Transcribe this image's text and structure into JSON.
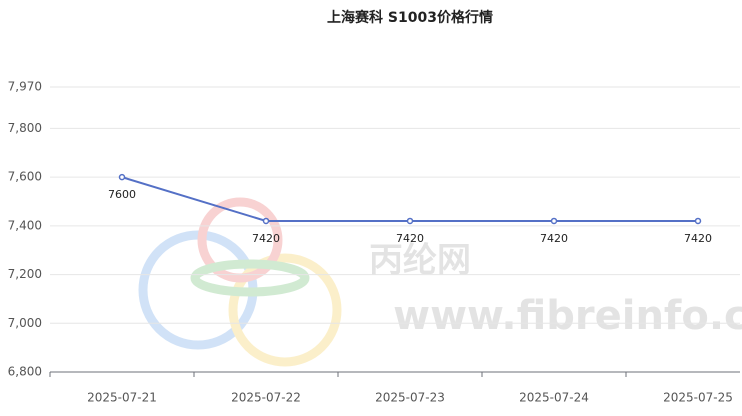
{
  "chart_data": {
    "type": "line",
    "title": "上海赛科 S1003价格行情",
    "categories": [
      "2025-07-21",
      "2025-07-22",
      "2025-07-23",
      "2025-07-24",
      "2025-07-25"
    ],
    "series": [
      {
        "name": "S1003",
        "color": "#5470c6",
        "values": [
          7600,
          7420,
          7420,
          7420,
          7420
        ]
      }
    ],
    "ylim": [
      6800,
      7970
    ],
    "yticks": [
      {
        "value": 6800,
        "label": "6,800"
      },
      {
        "value": 7000,
        "label": "7,000"
      },
      {
        "value": 7200,
        "label": "7,200"
      },
      {
        "value": 7400,
        "label": "7,400"
      },
      {
        "value": 7600,
        "label": "7,600"
      },
      {
        "value": 7800,
        "label": "7,800"
      },
      {
        "value": 7970,
        "label": "7,970"
      }
    ],
    "grid": true,
    "watermark": [
      "丙纶网",
      "www.fibreinfo.com"
    ]
  }
}
